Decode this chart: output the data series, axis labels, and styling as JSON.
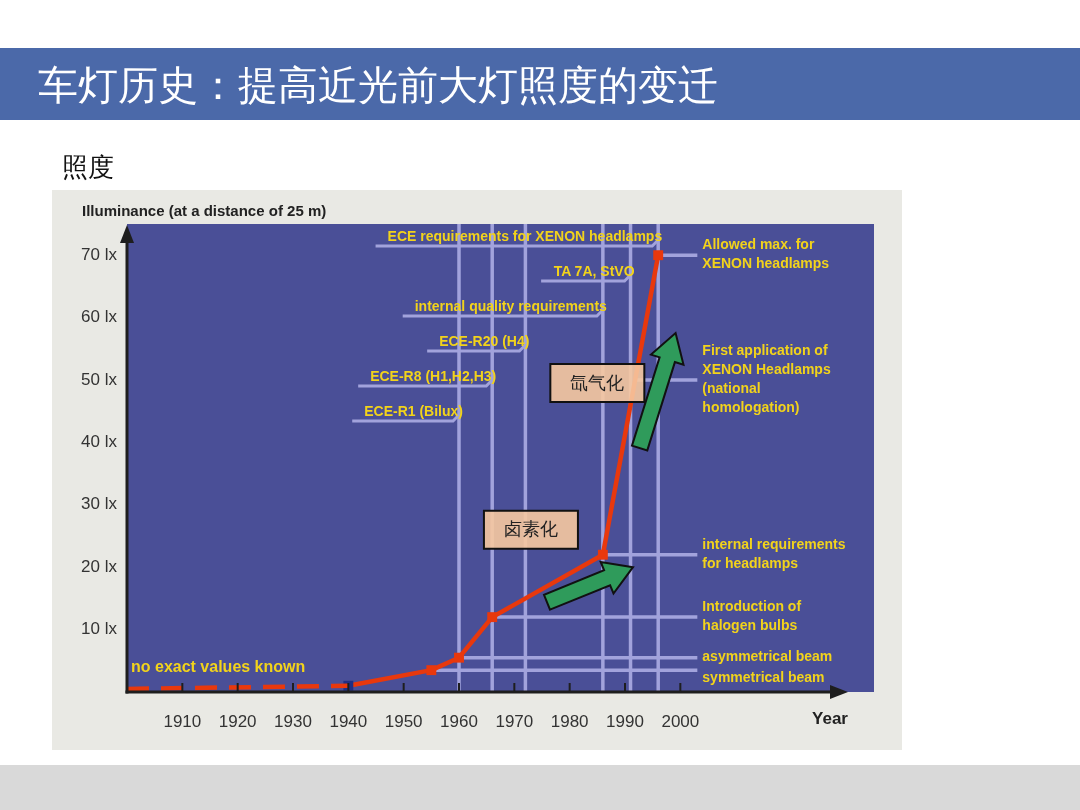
{
  "chart_data": {
    "type": "line",
    "title": "车灯历史：提高近光前大灯照度的变迁",
    "subtitle": "照度",
    "xlabel": "Year",
    "ylabel": "Illuminance (at a distance of 25 m)",
    "xlim": [
      1900,
      2035
    ],
    "xticks": [
      1910,
      1920,
      1930,
      1940,
      1950,
      1960,
      1970,
      1980,
      1990,
      2000
    ],
    "ylim": [
      0,
      75
    ],
    "yticks": [
      {
        "value": 10,
        "label": "10 lx"
      },
      {
        "value": 20,
        "label": "20 lx"
      },
      {
        "value": 30,
        "label": "30 lx"
      },
      {
        "value": 40,
        "label": "40 lx"
      },
      {
        "value": 50,
        "label": "50 lx"
      },
      {
        "value": 60,
        "label": "60 lx"
      },
      {
        "value": 70,
        "label": "70 lx"
      }
    ],
    "series": [
      {
        "color": "#e8380d",
        "x": [
          1900,
          1940
        ],
        "values": [
          0.5,
          1
        ],
        "line_style": "dashed",
        "marker": "none"
      },
      {
        "color": "#e8380d",
        "colors": [
          "#1f2f85",
          "#e8380d",
          "#e8380d",
          "#e8380d",
          "#e8380d",
          "#e8380d"
        ],
        "x": [
          1940,
          1955,
          1960,
          1966,
          1986,
          1996
        ],
        "values": [
          1,
          3.5,
          5.5,
          12,
          22,
          70
        ],
        "line_style": "solid",
        "marker": "square"
      }
    ],
    "ref_lines": [
      {
        "axis": "x",
        "value": 1960,
        "label": "ECE-R1 (Bilux)",
        "color": "#a2a3dc"
      },
      {
        "axis": "x",
        "value": 1966,
        "label": "ECE-R8 (H1,H2,H3)",
        "color": "#a2a3dc"
      },
      {
        "axis": "x",
        "value": 1972,
        "label": "ECE-R20 (H4)",
        "color": "#a2a3dc"
      },
      {
        "axis": "x",
        "value": 1986,
        "label": "internal quality requirements",
        "color": "#a2a3dc"
      },
      {
        "axis": "x",
        "value": 1991,
        "label": "TA 7A, StVO",
        "color": "#a2a3dc"
      },
      {
        "axis": "x",
        "value": 1996,
        "label": "ECE requirements for XENON headlamps",
        "color": "#a2a3dc"
      },
      {
        "axis": "y",
        "value": 70,
        "label": "Allowed max. for XENON headlamps",
        "color": "#a2a3dc"
      },
      {
        "axis": "y",
        "value": 50,
        "label": "First application of XENON Headlamps (national homologation)",
        "color": "#a2a3dc"
      },
      {
        "axis": "y",
        "value": 22,
        "label": "internal requirements for headlamps",
        "color": "#a2a3dc"
      },
      {
        "axis": "y",
        "value": 12,
        "label": "Introduction of halogen bulbs",
        "color": "#a2a3dc"
      },
      {
        "axis": "y",
        "value": 5.5,
        "label": "asymmetrical beam",
        "color": "#a2a3dc"
      },
      {
        "axis": "y",
        "value": 3.5,
        "label": "symmetrical beam",
        "color": "#a2a3dc"
      }
    ],
    "annotations": [
      "no exact values known",
      {
        "text": "卤素化",
        "x": 1973,
        "y": 26
      },
      {
        "text": "氙气化",
        "x": 1985,
        "y": 49.5
      }
    ]
  }
}
